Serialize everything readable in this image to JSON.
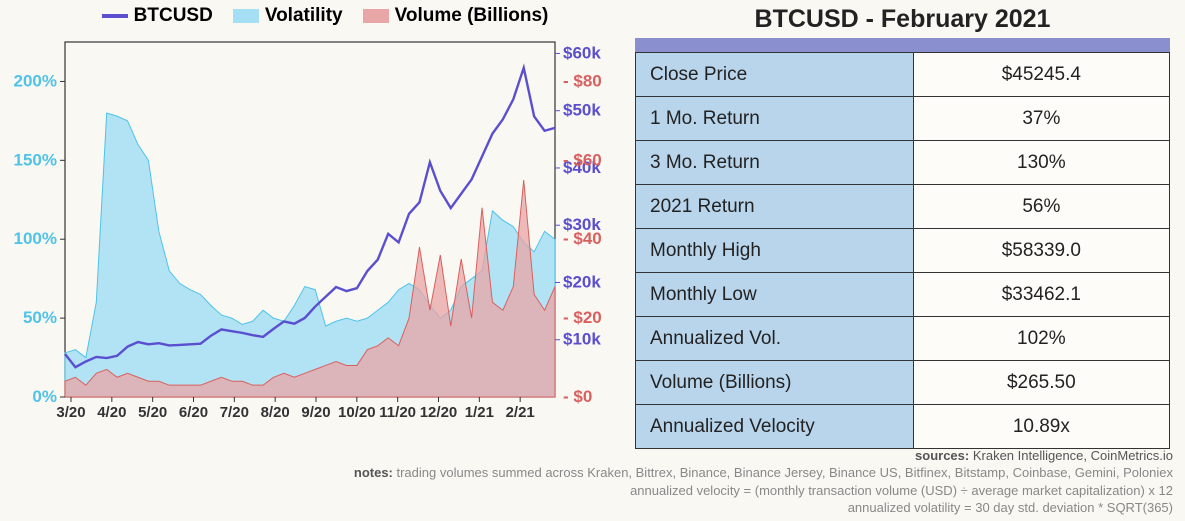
{
  "colors": {
    "price_line": "#5a4fcf",
    "volatility_area": "#a5dff3",
    "volatility_stroke": "#4fc3e8",
    "volume_area": "#e8a6a6",
    "volume_stroke": "#d9605f",
    "axis": "#333333",
    "table_header_bar": "#8a8fd0",
    "table_row_bg": "#b9d5ec",
    "background": "#faf8f3"
  },
  "legend": {
    "price": "BTCUSD",
    "volatility": "Volatility",
    "volume": "Volume (Billions)"
  },
  "chart": {
    "x_labels": [
      "3/20",
      "4/20",
      "5/20",
      "6/20",
      "7/20",
      "8/20",
      "9/20",
      "10/20",
      "11/20",
      "12/20",
      "1/21",
      "2/21"
    ],
    "y_left": {
      "ticks": [
        "0%",
        "50%",
        "100%",
        "150%",
        "200%"
      ],
      "min": 0,
      "max": 225
    },
    "y_price": {
      "ticks": [
        "$10k",
        "$20k",
        "$30k",
        "$40k",
        "$50k",
        "$60k"
      ],
      "min": 0,
      "max": 62000
    },
    "y_volume": {
      "ticks": [
        "$0",
        "$20",
        "$40",
        "$60",
        "$80"
      ],
      "min": 0,
      "max": 90
    },
    "volatility_series": [
      28,
      30,
      25,
      60,
      180,
      178,
      175,
      160,
      150,
      105,
      80,
      72,
      68,
      65,
      58,
      52,
      50,
      46,
      48,
      55,
      50,
      48,
      58,
      70,
      68,
      45,
      48,
      50,
      48,
      50,
      55,
      60,
      68,
      72,
      68,
      58,
      50,
      55,
      70,
      75,
      80,
      118,
      112,
      108,
      98,
      92,
      105,
      100
    ],
    "price_series": [
      7500,
      5200,
      6200,
      7000,
      6800,
      7200,
      8800,
      9600,
      9200,
      9400,
      9000,
      9100,
      9200,
      9300,
      10700,
      11800,
      11500,
      11200,
      10800,
      10500,
      11900,
      13200,
      12800,
      13800,
      15800,
      17500,
      19200,
      18500,
      19000,
      22000,
      24000,
      28500,
      27000,
      32000,
      34000,
      41000,
      36000,
      33000,
      35500,
      38000,
      42000,
      46000,
      48500,
      52000,
      57500,
      49000,
      46500,
      47000
    ],
    "volume_series": [
      4,
      5,
      3,
      6,
      7,
      5,
      6,
      5,
      4,
      4,
      3,
      3,
      3,
      3,
      4,
      5,
      4,
      4,
      3,
      3,
      5,
      6,
      5,
      6,
      7,
      8,
      9,
      8,
      8,
      12,
      13,
      15,
      13,
      20,
      38,
      22,
      36,
      18,
      35,
      20,
      48,
      24,
      22,
      28,
      55,
      26,
      22,
      28
    ]
  },
  "table": {
    "title": "BTCUSD - February 2021",
    "rows": [
      {
        "label": "Close Price",
        "value": "$45245.4"
      },
      {
        "label": "1 Mo. Return",
        "value": "37%"
      },
      {
        "label": "3 Mo. Return",
        "value": "130%"
      },
      {
        "label": "2021 Return",
        "value": "56%"
      },
      {
        "label": "Monthly High",
        "value": "$58339.0"
      },
      {
        "label": "Monthly Low",
        "value": "$33462.1"
      },
      {
        "label": "Annualized Vol.",
        "value": "102%"
      },
      {
        "label": "Volume (Billions)",
        "value": "$265.50"
      },
      {
        "label": "Annualized Velocity",
        "value": "10.89x"
      }
    ]
  },
  "footer": {
    "sources_label": "sources:",
    "sources": " Kraken Intelligence, CoinMetrics.io",
    "notes_label": "notes:",
    "notes_line1": " trading volumes summed across Kraken, Bittrex, Binance, Binance Jersey, Binance US, Bitfinex, Bitstamp, Coinbase, Gemini, Poloniex",
    "notes_line2": "annualized velocity = (monthly transaction volume (USD) ÷ average market capitalization) x 12",
    "notes_line3": "annualized volatility = 30 day std. deviation * SQRT(365)"
  }
}
